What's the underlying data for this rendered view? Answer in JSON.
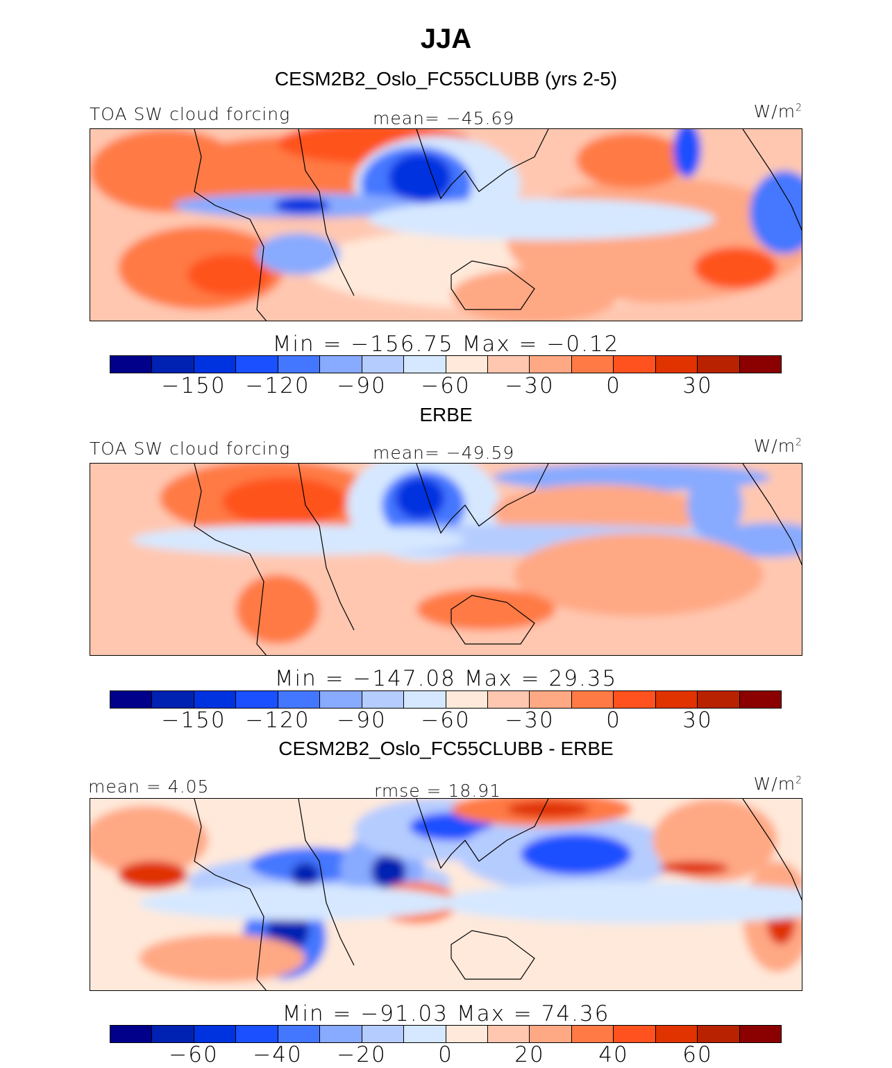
{
  "title": "JJA",
  "palette": [
    "#00008B",
    "#0022B2",
    "#0033E0",
    "#1A50FF",
    "#4477FF",
    "#88AAFF",
    "#B5CCFF",
    "#D6E8FF",
    "#FFE9DA",
    "#FFC7B0",
    "#FFA884",
    "#FF7A45",
    "#FF521E",
    "#E03300",
    "#B82200",
    "#8B0000"
  ],
  "panels": [
    {
      "title": "CESM2B2_Oslo_FC55CLUBB (yrs 2-5)",
      "left_label": "TOA SW cloud forcing",
      "center_label": "mean= −45.69",
      "units": "W/m",
      "units_sup": "2",
      "minmax": "Min  =  −156.75  Max  =   −0.12",
      "ticks": [
        "−150",
        "−120",
        "−90",
        "−60",
        "−30",
        "0",
        "30"
      ]
    },
    {
      "title": "ERBE",
      "left_label": "TOA SW cloud forcing",
      "center_label": "mean= −49.59",
      "units": "W/m",
      "units_sup": "2",
      "minmax": "Min  =  −147.08  Max  =   29.35",
      "ticks": [
        "−150",
        "−120",
        "−90",
        "−60",
        "−30",
        "0",
        "30"
      ]
    },
    {
      "title": "CESM2B2_Oslo_FC55CLUBB - ERBE",
      "left_label": "mean =    4.05",
      "center_label": "rmse =   18.91",
      "units": "W/m",
      "units_sup": "2",
      "minmax": "Min  =  −91.03  Max  =   74.36",
      "ticks": [
        "−60",
        "−40",
        "−20",
        "0",
        "20",
        "40",
        "60"
      ]
    }
  ]
}
